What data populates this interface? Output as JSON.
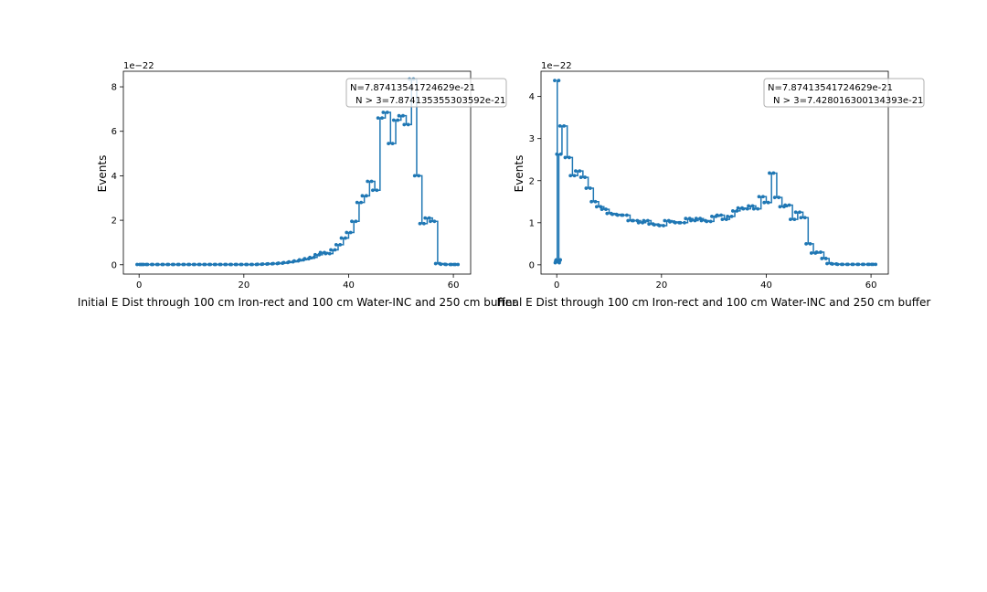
{
  "chart_data": [
    {
      "type": "line",
      "title": "",
      "xlabel": "Initial E Dist through 100 cm Iron-rect and 100 cm Water-INC and 250 cm buffer",
      "ylabel": "Events",
      "offset_text": "1e−22",
      "scale": 1e-22,
      "xlim": [
        -3,
        63.3
      ],
      "ylim": [
        -0.42,
        8.7
      ],
      "xticks": [
        0,
        20,
        40,
        60
      ],
      "yticks": [
        0,
        2,
        4,
        6,
        8
      ],
      "xtick_labels": [
        "0",
        "20",
        "40",
        "60"
      ],
      "ytick_labels": [
        "0",
        "2",
        "4",
        "6",
        "8"
      ],
      "legend": {
        "placement": "top-right",
        "line1": "N=7.87413541724629e-21",
        "line2": "N > 3=7.874135355303592e-21"
      },
      "series": [
        {
          "color": "#1f77b4",
          "x": [
            0,
            0.5,
            1,
            2,
            3,
            4,
            5,
            6,
            7,
            8,
            9,
            10,
            11,
            12,
            13,
            14,
            15,
            16,
            17,
            18,
            19,
            20,
            21,
            22,
            23,
            24,
            25,
            26,
            27,
            28,
            29,
            30,
            31,
            32,
            33,
            34,
            35,
            36,
            37,
            38,
            39,
            40,
            41,
            42,
            43,
            44,
            45,
            46,
            47,
            48,
            49,
            50,
            51,
            52,
            53,
            54,
            55,
            56,
            57,
            58,
            59,
            60,
            60.5
          ],
          "y": [
            0.01,
            0.01,
            0.01,
            0.01,
            0.01,
            0.01,
            0.01,
            0.01,
            0.01,
            0.01,
            0.01,
            0.01,
            0.01,
            0.01,
            0.01,
            0.01,
            0.01,
            0.01,
            0.01,
            0.01,
            0.01,
            0.01,
            0.01,
            0.01,
            0.02,
            0.03,
            0.04,
            0.05,
            0.07,
            0.1,
            0.13,
            0.17,
            0.22,
            0.27,
            0.33,
            0.45,
            0.55,
            0.5,
            0.67,
            0.9,
            1.2,
            1.45,
            1.95,
            2.8,
            3.1,
            3.75,
            3.35,
            6.6,
            6.85,
            5.45,
            6.5,
            6.7,
            6.3,
            8.35,
            4.0,
            1.85,
            2.1,
            1.95,
            0.05,
            0.02,
            0.01,
            0.01,
            0.01
          ]
        }
      ]
    },
    {
      "type": "line",
      "title": "",
      "xlabel": "Final E Dist through 100 cm Iron-rect and 100 cm Water-INC and 250 cm buffer",
      "ylabel": "Events",
      "offset_text": "1e−22",
      "scale": 1e-22,
      "xlim": [
        -3,
        63.3
      ],
      "ylim": [
        -0.22,
        4.6
      ],
      "xticks": [
        0,
        20,
        40,
        60
      ],
      "yticks": [
        0,
        1,
        2,
        3,
        4
      ],
      "xtick_labels": [
        "0",
        "20",
        "40",
        "60"
      ],
      "ytick_labels": [
        "0",
        "1",
        "2",
        "3",
        "4"
      ],
      "legend": {
        "placement": "top-right",
        "line1": "N=7.87413541724629e-21",
        "line2": "N > 3=7.428016300134393e-21"
      },
      "series": [
        {
          "color": "#1f77b4",
          "x": [
            0,
            0.1,
            0.2,
            0.3,
            0.4,
            1,
            2,
            3,
            4,
            5,
            6,
            7,
            8,
            9,
            10,
            11,
            12,
            13,
            14,
            15,
            16,
            17,
            18,
            19,
            20,
            21,
            22,
            23,
            24,
            25,
            26,
            27,
            28,
            29,
            30,
            31,
            32,
            33,
            34,
            35,
            36,
            37,
            38,
            39,
            40,
            41,
            42,
            43,
            44,
            45,
            46,
            47,
            48,
            49,
            50,
            51,
            52,
            53,
            54,
            55,
            56,
            57,
            58,
            59,
            60,
            60.5
          ],
          "y": [
            4.38,
            0.05,
            0.1,
            0.12,
            2.63,
            3.3,
            2.55,
            2.12,
            2.23,
            2.08,
            1.82,
            1.5,
            1.38,
            1.32,
            1.22,
            1.2,
            1.18,
            1.18,
            1.05,
            1.05,
            1.0,
            1.05,
            0.97,
            0.95,
            0.93,
            1.05,
            1.02,
            1.0,
            1.0,
            1.1,
            1.05,
            1.1,
            1.05,
            1.03,
            1.15,
            1.18,
            1.08,
            1.15,
            1.28,
            1.35,
            1.33,
            1.4,
            1.33,
            1.62,
            1.48,
            2.18,
            1.6,
            1.38,
            1.42,
            1.08,
            1.25,
            1.12,
            0.5,
            0.28,
            0.3,
            0.15,
            0.03,
            0.02,
            0.01,
            0.01,
            0.01,
            0.01,
            0.01,
            0.01,
            0.01,
            0.01
          ]
        }
      ]
    }
  ]
}
